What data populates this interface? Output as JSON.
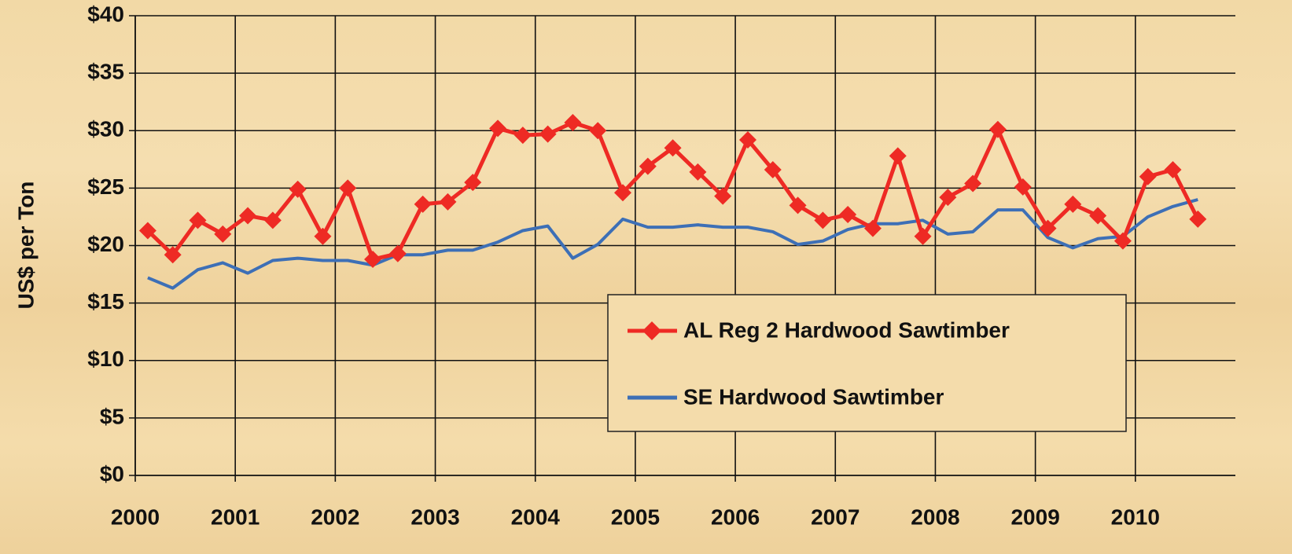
{
  "chart_data": {
    "type": "line",
    "y_label": "US$ per Ton",
    "x": [
      2000.125,
      2000.375,
      2000.625,
      2000.875,
      2001.125,
      2001.375,
      2001.625,
      2001.875,
      2002.125,
      2002.375,
      2002.625,
      2002.875,
      2003.125,
      2003.375,
      2003.625,
      2003.875,
      2004.125,
      2004.375,
      2004.625,
      2004.875,
      2005.125,
      2005.375,
      2005.625,
      2005.875,
      2006.125,
      2006.375,
      2006.625,
      2006.875,
      2007.125,
      2007.375,
      2007.625,
      2007.875,
      2008.125,
      2008.375,
      2008.625,
      2008.875,
      2009.125,
      2009.375,
      2009.625,
      2009.875,
      2010.125,
      2010.375,
      2010.625
    ],
    "series": [
      {
        "name": "AL Reg 2 Hardwood Sawtimber",
        "color": "#ee2a24",
        "marker": "diamond",
        "values": [
          21.3,
          19.2,
          22.2,
          21.0,
          22.6,
          22.2,
          24.9,
          20.8,
          25.0,
          18.8,
          19.3,
          23.6,
          23.8,
          25.5,
          30.2,
          29.6,
          29.7,
          30.7,
          30.0,
          24.6,
          26.9,
          28.5,
          26.4,
          24.3,
          29.2,
          26.6,
          23.5,
          22.2,
          22.7,
          21.5,
          27.8,
          20.8,
          24.2,
          25.4,
          30.1,
          25.1,
          21.5,
          23.6,
          22.6,
          20.4,
          26.0,
          26.6,
          22.3
        ]
      },
      {
        "name": "SE Hardwood Sawtimber",
        "color": "#3d6fb6",
        "values": [
          17.2,
          16.3,
          17.9,
          18.5,
          17.6,
          18.7,
          18.9,
          18.7,
          18.7,
          18.3,
          19.2,
          19.2,
          19.6,
          19.6,
          20.3,
          21.3,
          21.7,
          18.9,
          20.1,
          22.3,
          21.6,
          21.6,
          21.8,
          21.6,
          21.6,
          21.2,
          20.1,
          20.4,
          21.4,
          21.9,
          21.9,
          22.2,
          21.0,
          21.2,
          23.1,
          23.1,
          20.7,
          19.8,
          20.6,
          20.8,
          22.5,
          23.4,
          24.0
        ]
      }
    ],
    "xlim": [
      2000,
      2011
    ],
    "xticks": [
      2000,
      2001,
      2002,
      2003,
      2004,
      2005,
      2006,
      2007,
      2008,
      2009,
      2010
    ],
    "ylim": [
      0,
      40
    ],
    "yticks": [
      {
        "value": 0,
        "label": "$0"
      },
      {
        "value": 5,
        "label": "$5"
      },
      {
        "value": 10,
        "label": "$10"
      },
      {
        "value": 15,
        "label": "$15"
      },
      {
        "value": 20,
        "label": "$20"
      },
      {
        "value": 25,
        "label": "$25"
      },
      {
        "value": 30,
        "label": "$30"
      },
      {
        "value": 35,
        "label": "$35"
      },
      {
        "value": 40,
        "label": "$40"
      }
    ],
    "grid": true,
    "legend": "lower right"
  }
}
